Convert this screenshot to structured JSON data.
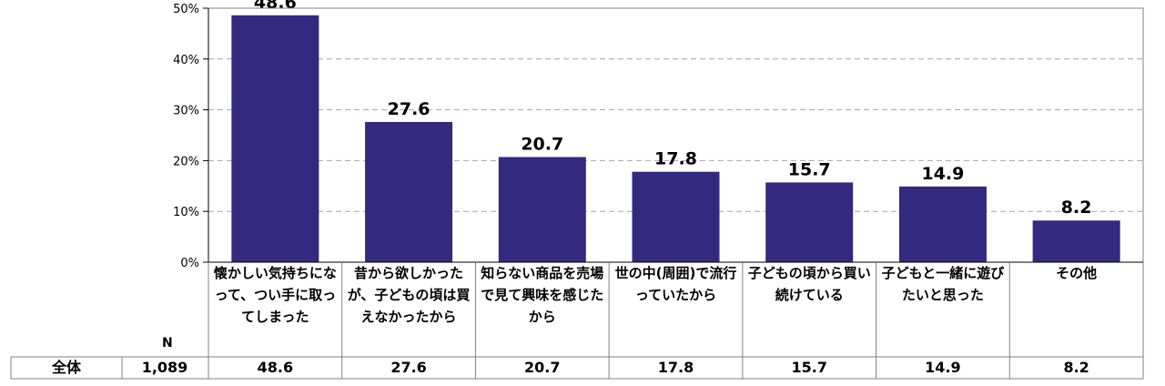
{
  "chart_data": {
    "type": "bar",
    "categories": [
      "懐かしい気持ちになって、つい手に取ってしまった",
      "昔から欲しかったが、子どもの頃は買えなかったから",
      "知らない商品を売場で見て興味を感じたから",
      "世の中(周囲)で流行っていたから",
      "子どもの頃から買い続けている",
      "子どもと一緒に遊びたいと思った",
      "その他"
    ],
    "values": [
      48.6,
      27.6,
      20.7,
      17.8,
      15.7,
      14.9,
      8.2
    ],
    "value_labels": [
      "48.6",
      "27.6",
      "20.7",
      "17.8",
      "15.7",
      "14.9",
      "8.2"
    ],
    "ylim": [
      0,
      50
    ],
    "yticks": [
      0,
      10,
      20,
      30,
      40,
      50
    ],
    "ytick_labels": [
      "0%",
      "10%",
      "20%",
      "30%",
      "40%",
      "50%"
    ],
    "grid": true,
    "bar_color": "#33297F",
    "title": "",
    "xlabel": "",
    "ylabel": ""
  },
  "table": {
    "n_header": "N",
    "row_label": "全体",
    "n_value": "1,089",
    "values": [
      "48.6",
      "27.6",
      "20.7",
      "17.8",
      "15.7",
      "14.9",
      "8.2"
    ]
  }
}
